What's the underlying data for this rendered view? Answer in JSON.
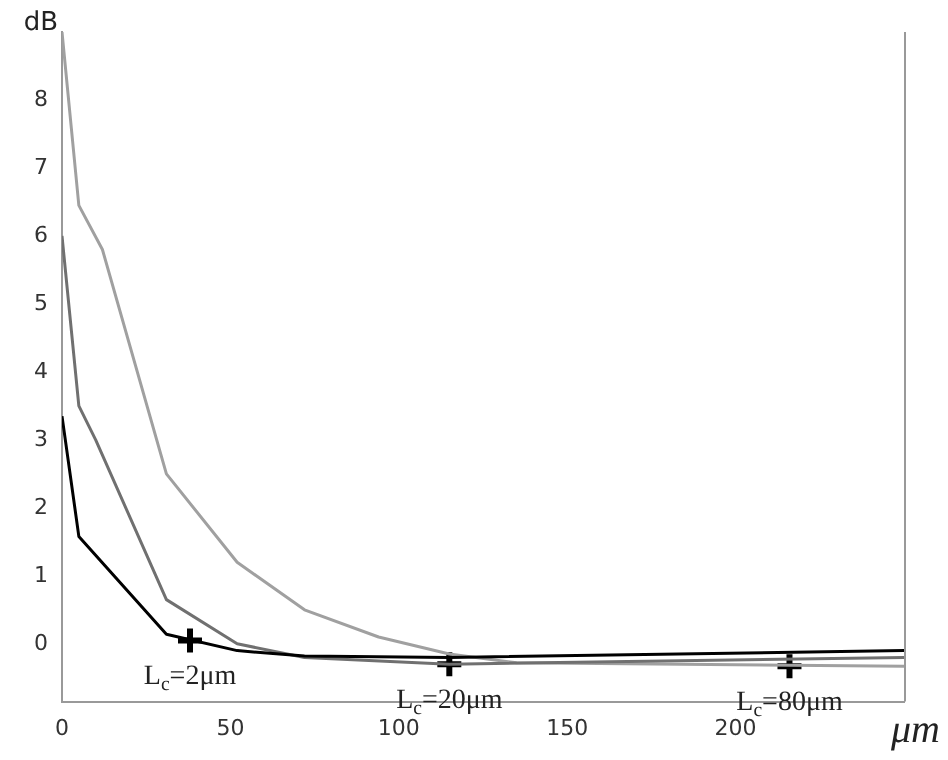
{
  "chart_data": {
    "type": "line",
    "xlabel": "μm",
    "ylabel": "dB",
    "xlim": [
      0,
      250
    ],
    "ylim": [
      -0.85,
      9
    ],
    "xticks": [
      0,
      50,
      100,
      150,
      200
    ],
    "yticks": [
      0,
      1,
      2,
      3,
      4,
      5,
      6,
      7,
      8
    ],
    "grid": false,
    "legend": false,
    "marker": "none",
    "line_style": "solid",
    "series": [
      {
        "color": "#000000",
        "x": [
          0,
          5,
          31,
          52,
          72,
          115,
          250
        ],
        "values": [
          3.35,
          1.58,
          0.14,
          -0.1,
          -0.18,
          -0.2,
          -0.1
        ]
      },
      {
        "color": "#707070",
        "x": [
          0,
          5,
          10,
          31,
          52,
          72,
          115,
          250
        ],
        "values": [
          6.0,
          3.5,
          3.0,
          0.65,
          0.0,
          -0.2,
          -0.3,
          -0.2
        ]
      },
      {
        "color": "#a0a0a0",
        "x": [
          0,
          5,
          12,
          31,
          52,
          72,
          94,
          115,
          135,
          250
        ],
        "values": [
          9.0,
          6.45,
          5.8,
          2.5,
          1.2,
          0.5,
          0.1,
          -0.15,
          -0.28,
          -0.33
        ]
      },
      {
        "type": "scatter",
        "marker": "cross",
        "color": "#000000",
        "x": [
          38,
          115,
          216
        ],
        "values": [
          0.05,
          -0.3,
          -0.33
        ]
      }
    ],
    "annotations": [
      {
        "text": "L$_{c}$=2μm",
        "x": 38,
        "y": 0.05
      },
      {
        "text": "L$_{c}$=20μm",
        "x": 115,
        "y": -0.3
      },
      {
        "text": "L$_{c}$=80μm",
        "x": 216,
        "y": -0.33
      }
    ]
  }
}
